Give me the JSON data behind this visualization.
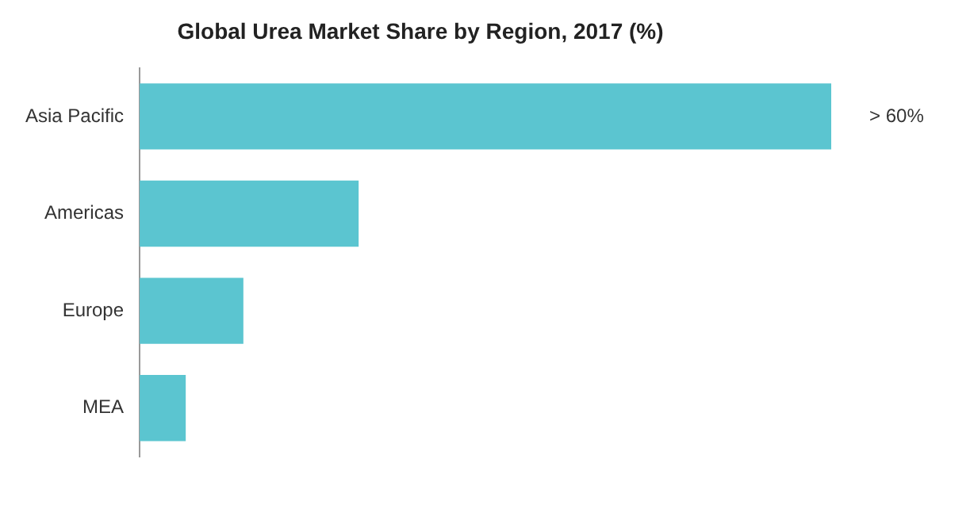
{
  "chart_data": {
    "type": "bar",
    "orientation": "horizontal",
    "title": "Global Urea Market Share by Region, 2017 (%)",
    "categories": [
      "Asia Pacific",
      "Americas",
      "Europe",
      "MEA"
    ],
    "values": [
      60,
      19,
      9,
      4
    ],
    "value_labels": [
      "> 60%",
      null,
      null,
      null
    ],
    "xlim": [
      0,
      60
    ],
    "tick_labels": "y",
    "color": "#5bc5d0",
    "legend": false
  }
}
